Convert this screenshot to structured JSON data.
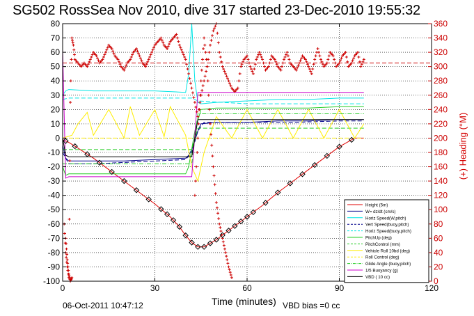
{
  "chart_data": {
    "type": "line",
    "title": "SG502 RossSea Nov 2010, dive 317 started 23-Dec-2010 19:55:32",
    "xlabel": "Time (minutes)",
    "y2label": "(+) Heading (°M)",
    "footer_left": "06-Oct-2011 10:47:12",
    "footer_right": "VBD bias =0 cc",
    "xlim": [
      0,
      120
    ],
    "ylim": [
      -100,
      80
    ],
    "y2lim": [
      0,
      360
    ],
    "xticks": [
      "0",
      "30",
      "60",
      "90",
      "120"
    ],
    "yticks": [
      "80",
      "70",
      "60",
      "50",
      "40",
      "30",
      "20",
      "10",
      "0",
      "-10",
      "-20",
      "-30",
      "-40",
      "-50",
      "-60",
      "-70",
      "-80",
      "-90",
      "-100"
    ],
    "y2ticks": [
      "360",
      "340",
      "320",
      "300",
      "280",
      "260",
      "240",
      "220",
      "200",
      "180",
      "160",
      "140",
      "120",
      "100",
      "80",
      "60",
      "40",
      "20",
      "0"
    ],
    "grid": true,
    "legend_placement": "bottom-right",
    "colors": {
      "height": "#e00000",
      "w": "#00008b",
      "hspd": "#00e5e5",
      "pitch": "#22cc22",
      "roll": "#ffee00",
      "buoy": "#cc00cc",
      "vbd": "#000000",
      "heading": "#cc0000"
    },
    "series": [
      {
        "name": "Height (5m)",
        "key": "height",
        "style": "solid",
        "x": [
          0,
          2,
          5,
          10,
          15,
          20,
          25,
          30,
          35,
          38,
          40,
          42,
          44,
          46,
          50,
          55,
          60,
          65,
          70,
          75,
          80,
          85,
          90,
          95,
          98
        ],
        "y": [
          -1,
          -3,
          -7,
          -14,
          -22,
          -30,
          -38,
          -46,
          -55,
          -62,
          -68,
          -73,
          -76,
          -76,
          -71,
          -63,
          -55,
          -47,
          -38,
          -30,
          -22,
          -14,
          -6,
          0,
          0
        ]
      },
      {
        "name": "W= dz/dt (cm/s)",
        "key": "w",
        "style": "solid",
        "x": [
          0,
          1,
          2,
          10,
          20,
          30,
          40,
          41,
          42,
          43,
          44,
          45,
          50,
          60,
          70,
          80,
          90,
          98
        ],
        "y": [
          -5,
          -14,
          -16,
          -16,
          -16,
          -15,
          -14,
          -12,
          -8,
          -2,
          5,
          10,
          11,
          11,
          12,
          12,
          13,
          13
        ]
      },
      {
        "name": "Horiz Speed(W,pitch)",
        "key": "hspd",
        "style": "solid",
        "x": [
          0,
          1,
          2,
          10,
          20,
          30,
          40,
          41,
          42,
          43,
          44,
          45,
          50,
          60,
          70,
          80,
          90,
          98
        ],
        "y": [
          30,
          33,
          34,
          33,
          33,
          33,
          32,
          45,
          80,
          40,
          25,
          24,
          25,
          26,
          27,
          27,
          28,
          28
        ]
      },
      {
        "name": "Vert Speed(buoy,pitch)",
        "key": "w",
        "style": "dashed",
        "x": [
          0,
          2,
          10,
          20,
          30,
          40,
          42,
          44,
          46,
          60,
          75,
          90,
          98
        ],
        "y": [
          -10,
          -18,
          -18,
          -17,
          -16,
          -15,
          -10,
          5,
          11,
          11,
          11,
          12,
          12
        ]
      },
      {
        "name": "Horiz Speed(buoy,pitch)",
        "key": "hspd",
        "style": "dashed",
        "x": [
          0,
          2,
          20,
          40,
          42,
          44,
          60,
          98
        ],
        "y": [
          27,
          28,
          28,
          28,
          28,
          26,
          24,
          24
        ]
      },
      {
        "name": "PitchUp (deg)",
        "key": "pitch",
        "style": "solid",
        "x": [
          0,
          1,
          2,
          10,
          20,
          30,
          40,
          41,
          43,
          45,
          50,
          60,
          70,
          80,
          90,
          98
        ],
        "y": [
          -20,
          -26,
          -25,
          -25,
          -25,
          -25,
          -25,
          -20,
          5,
          20,
          21,
          21,
          21,
          21,
          22,
          22
        ]
      },
      {
        "name": "PitchControl (mm)",
        "key": "pitch",
        "style": "dashed",
        "x": [
          0,
          2,
          42,
          44,
          98
        ],
        "y": [
          -8,
          -8,
          -8,
          7,
          7
        ]
      },
      {
        "name": "Vehicle Roll 10bd (deg)",
        "key": "roll",
        "style": "solid",
        "x": [
          0,
          3,
          5,
          8,
          10,
          15,
          20,
          22,
          25,
          30,
          33,
          35,
          40,
          42,
          44,
          46,
          50,
          55,
          60,
          65,
          70,
          75,
          80,
          85,
          90,
          95,
          98
        ],
        "y": [
          0,
          2,
          10,
          18,
          2,
          20,
          0,
          22,
          2,
          20,
          1,
          22,
          2,
          -20,
          -30,
          -10,
          15,
          0,
          20,
          0,
          20,
          0,
          20,
          0,
          20,
          0,
          10
        ]
      },
      {
        "name": "Roll Control (deg)",
        "key": "roll",
        "style": "dashed",
        "x": [
          0,
          42,
          44,
          98
        ],
        "y": [
          0,
          0,
          0,
          0
        ]
      },
      {
        "name": "Glide Angle (buoy,pitch)",
        "key": "pitch",
        "style": "dashdot",
        "x": [
          0,
          2,
          42,
          44,
          98
        ],
        "y": [
          -18,
          -18,
          -18,
          17,
          17
        ]
      },
      {
        "name": "1/5 Buoyancy (g)",
        "key": "buoy",
        "style": "solid",
        "x": [
          0,
          1,
          2,
          10,
          20,
          30,
          40,
          42,
          44,
          46,
          60,
          80,
          98
        ],
        "y": [
          62,
          -28,
          -27,
          -27,
          -27,
          -27,
          -27,
          -27,
          32,
          32,
          32,
          32,
          32
        ]
      },
      {
        "name": "VBD ( 10 cc)",
        "key": "vbd",
        "style": "solid",
        "x": [
          0,
          1,
          2,
          10,
          20,
          30,
          40,
          42,
          44,
          46,
          60,
          80,
          98
        ],
        "y": [
          0,
          -12,
          -13,
          -13,
          -13,
          -13,
          -13,
          -13,
          13,
          13,
          13,
          13,
          13
        ]
      }
    ],
    "heading_points": {
      "x": [
        0.5,
        1,
        1.5,
        2,
        2.5,
        3,
        3.5,
        4,
        5,
        6,
        7,
        8,
        9,
        10,
        11,
        12,
        13,
        14,
        15,
        16,
        17,
        18,
        19,
        20,
        21,
        22,
        23,
        24,
        25,
        26,
        27,
        28,
        29,
        30,
        31,
        32,
        33,
        34,
        35,
        36,
        37,
        38,
        39,
        40,
        41,
        42,
        43,
        44,
        45,
        46,
        47,
        48,
        49,
        50,
        51,
        52,
        53,
        54,
        55,
        56,
        57,
        58,
        59,
        60,
        61,
        62,
        63,
        64,
        65,
        66,
        67,
        68,
        69,
        70,
        71,
        72,
        73,
        74,
        75,
        76,
        77,
        78,
        79,
        80,
        81,
        82,
        83,
        84,
        85,
        86,
        87,
        88,
        89,
        90,
        91,
        92,
        93,
        94,
        95,
        96,
        97,
        98
      ],
      "y": [
        80,
        40,
        20,
        5,
        250,
        340,
        330,
        310,
        305,
        300,
        305,
        300,
        310,
        320,
        315,
        305,
        310,
        320,
        330,
        325,
        315,
        310,
        300,
        295,
        305,
        310,
        320,
        325,
        315,
        305,
        300,
        310,
        320,
        330,
        335,
        340,
        330,
        325,
        335,
        340,
        345,
        330,
        320,
        310,
        290,
        270,
        250,
        230,
        260,
        280,
        300,
        330,
        350,
        360,
        320,
        300,
        290,
        280,
        270,
        265,
        270,
        300,
        310,
        315,
        300,
        290,
        310,
        320,
        310,
        295,
        300,
        315,
        310,
        300,
        295,
        310,
        320,
        305,
        300,
        295,
        305,
        315,
        310,
        300,
        290,
        310,
        325,
        310,
        300,
        305,
        320,
        315,
        300,
        305,
        315,
        320,
        300,
        305,
        315,
        320,
        300,
        310
      ]
    },
    "heading_extra": {
      "x": [
        1,
        1.5,
        2,
        2.5,
        3,
        43,
        44,
        45,
        46,
        47,
        48,
        49,
        50,
        51,
        52,
        53,
        54,
        55
      ],
      "y": [
        60,
        30,
        10,
        0,
        5,
        120,
        200,
        280,
        340,
        300,
        220,
        160,
        110,
        80,
        60,
        40,
        20,
        5
      ]
    },
    "heading_ref": 305,
    "diamond_x": [
      1,
      4,
      8,
      12,
      16,
      20,
      24,
      28,
      32,
      34,
      36,
      38,
      40,
      42,
      44,
      46,
      48,
      50,
      52,
      54,
      56,
      58,
      60,
      62,
      66,
      70,
      74,
      78,
      82,
      86,
      90,
      94
    ],
    "legend": [
      {
        "label": "Height (5m)",
        "key": "height",
        "style": "solid"
      },
      {
        "label": "W= dz/dt (cm/s)",
        "key": "w",
        "style": "solid"
      },
      {
        "label": "Horiz Speed(W,pitch)",
        "key": "hspd",
        "style": "solid"
      },
      {
        "label": "Vert Speed(buoy,pitch)",
        "key": "w",
        "style": "dashed"
      },
      {
        "label": "Horiz Speed(buoy,pitch)",
        "key": "hspd",
        "style": "dashed"
      },
      {
        "label": "PitchUp (deg)",
        "key": "pitch",
        "style": "solid"
      },
      {
        "label": "PitchControl (mm)",
        "key": "pitch",
        "style": "dashed"
      },
      {
        "label": "Vehicle Roll 10bd (deg)",
        "key": "roll",
        "style": "solid"
      },
      {
        "label": "Roll Control (deg)",
        "key": "roll",
        "style": "dashed"
      },
      {
        "label": "Glide Angle (buoy,pitch)",
        "key": "pitch",
        "style": "dashdot"
      },
      {
        "label": "1/5 Buoyancy (g)",
        "key": "buoy",
        "style": "solid"
      },
      {
        "label": "VBD ( 10 cc)",
        "key": "vbd",
        "style": "solid"
      }
    ]
  }
}
